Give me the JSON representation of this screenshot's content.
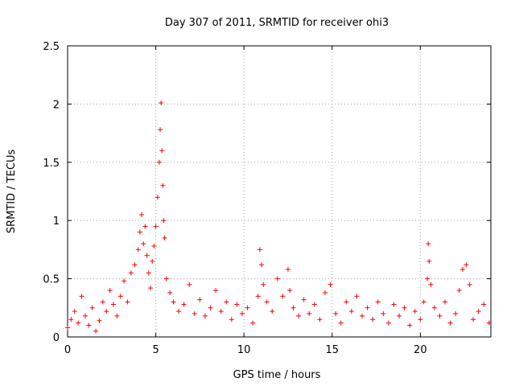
{
  "chart_data": {
    "type": "scatter",
    "title": "Day 307 of 2011, SRMTID for receiver ohi3",
    "xlabel": "GPS time / hours",
    "ylabel": "SRMTID / TECUs",
    "xlim": [
      0,
      24
    ],
    "ylim": [
      0,
      2.5
    ],
    "xticks": [
      "0",
      "5",
      "10",
      "15",
      "20"
    ],
    "xtick_values": [
      0,
      5,
      10,
      15,
      20
    ],
    "yticks": [
      "0",
      "0.5",
      "1",
      "1.5",
      "2",
      "2.5"
    ],
    "ytick_values": [
      0,
      0.5,
      1,
      1.5,
      2,
      2.5
    ],
    "grid": true,
    "marker": "+",
    "color": "#ff0000",
    "series": [
      {
        "name": "SRMTID",
        "x": [
          0.0,
          0.2,
          0.4,
          0.6,
          0.8,
          1.0,
          1.2,
          1.4,
          1.6,
          1.8,
          2.0,
          2.2,
          2.4,
          2.6,
          2.8,
          3.0,
          3.2,
          3.4,
          3.6,
          3.8,
          4.0,
          4.1,
          4.2,
          4.3,
          4.4,
          4.5,
          4.6,
          4.7,
          4.8,
          4.9,
          5.0,
          5.1,
          5.2,
          5.25,
          5.3,
          5.35,
          5.4,
          5.45,
          5.5,
          5.6,
          5.8,
          6.0,
          6.3,
          6.6,
          6.9,
          7.2,
          7.5,
          7.8,
          8.1,
          8.4,
          8.7,
          9.0,
          9.3,
          9.6,
          9.9,
          10.2,
          10.5,
          10.8,
          10.9,
          11.0,
          11.1,
          11.3,
          11.6,
          11.9,
          12.2,
          12.5,
          12.6,
          12.8,
          13.1,
          13.4,
          13.7,
          14.0,
          14.3,
          14.6,
          14.9,
          15.2,
          15.5,
          15.8,
          16.1,
          16.4,
          16.7,
          17.0,
          17.3,
          17.6,
          17.9,
          18.2,
          18.5,
          18.8,
          19.1,
          19.4,
          19.7,
          20.0,
          20.2,
          20.4,
          20.45,
          20.5,
          20.6,
          20.8,
          21.1,
          21.4,
          21.7,
          22.0,
          22.2,
          22.4,
          22.6,
          22.8,
          23.0,
          23.3,
          23.6,
          23.9
        ],
        "y": [
          0.08,
          0.15,
          0.22,
          0.12,
          0.35,
          0.18,
          0.1,
          0.25,
          0.05,
          0.14,
          0.3,
          0.22,
          0.4,
          0.28,
          0.18,
          0.35,
          0.48,
          0.3,
          0.55,
          0.62,
          0.75,
          0.9,
          1.05,
          0.8,
          0.95,
          0.7,
          0.55,
          0.42,
          0.65,
          0.78,
          0.95,
          1.2,
          1.5,
          1.78,
          2.01,
          1.6,
          1.3,
          1.0,
          0.85,
          0.5,
          0.38,
          0.3,
          0.22,
          0.28,
          0.45,
          0.2,
          0.32,
          0.18,
          0.25,
          0.4,
          0.22,
          0.3,
          0.15,
          0.28,
          0.2,
          0.25,
          0.12,
          0.35,
          0.75,
          0.62,
          0.45,
          0.3,
          0.22,
          0.5,
          0.35,
          0.58,
          0.4,
          0.25,
          0.18,
          0.32,
          0.2,
          0.28,
          0.15,
          0.38,
          0.45,
          0.2,
          0.12,
          0.3,
          0.22,
          0.35,
          0.18,
          0.25,
          0.15,
          0.3,
          0.2,
          0.12,
          0.28,
          0.18,
          0.25,
          0.1,
          0.22,
          0.15,
          0.3,
          0.5,
          0.8,
          0.65,
          0.45,
          0.25,
          0.18,
          0.3,
          0.12,
          0.2,
          0.4,
          0.58,
          0.62,
          0.45,
          0.15,
          0.22,
          0.28,
          0.12
        ]
      }
    ]
  }
}
